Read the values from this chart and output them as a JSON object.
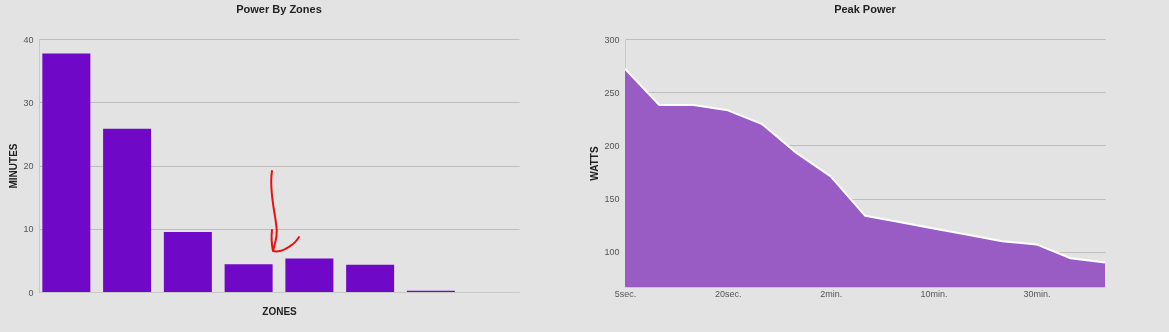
{
  "chart_data": [
    {
      "type": "bar",
      "title": "Power By Zones",
      "xlabel": "ZONES",
      "ylabel": "MINUTES",
      "categories": [
        null,
        null,
        null,
        null,
        null,
        null,
        null,
        null
      ],
      "values": [
        37.7,
        25.8,
        9.5,
        4.4,
        5.3,
        4.3,
        0.2,
        0
      ],
      "color": "#7008c8",
      "ylim": [
        0,
        40
      ],
      "yticks": [
        0,
        10,
        20,
        30,
        40
      ],
      "grid": "y",
      "tick_labels": "y"
    },
    {
      "type": "area",
      "title": "Peak Power",
      "ylabel": "WATTS",
      "categories": [
        "5sec.",
        null,
        null,
        "20sec.",
        null,
        null,
        "2min.",
        null,
        null,
        "10min.",
        null,
        null,
        "30min.",
        null,
        null
      ],
      "values": [
        272,
        238,
        238,
        233,
        220,
        193,
        171,
        134,
        128,
        122,
        116,
        110,
        107,
        94,
        90
      ],
      "color": "#985cc4",
      "ylim": [
        67,
        300
      ],
      "yticks": [
        100,
        150,
        200,
        250,
        300
      ],
      "grid": "y"
    }
  ]
}
